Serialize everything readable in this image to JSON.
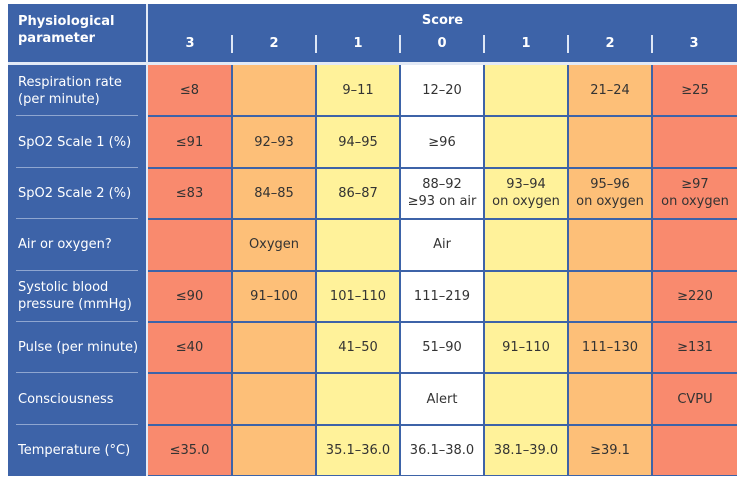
{
  "header": {
    "param_label": "Physiological parameter",
    "score_label": "Score",
    "score_columns": [
      "3",
      "2",
      "1",
      "0",
      "1",
      "2",
      "3"
    ]
  },
  "colors": {
    "header": "#3d63a8",
    "score3": "#f98a6e",
    "score2": "#fdbf78",
    "score1": "#fff29a",
    "score0": "#ffffff"
  },
  "rows": [
    {
      "label": "Respiration rate (per minute)",
      "cells": [
        "≤8",
        "",
        "9–11",
        "12–20",
        "",
        "21–24",
        "≥25"
      ]
    },
    {
      "label": "SpO2 Scale 1 (%)",
      "cells": [
        "≤91",
        "92–93",
        "94–95",
        "≥96",
        "",
        "",
        ""
      ]
    },
    {
      "label": "SpO2 Scale 2 (%)",
      "cells": [
        "≤83",
        "84–85",
        "86–87",
        "88–92 ≥93 on air",
        "93–94 on oxygen",
        "95–96 on oxygen",
        "≥97 on oxygen"
      ]
    },
    {
      "label": "Air or oxygen?",
      "cells": [
        "",
        "Oxygen",
        "",
        "Air",
        "",
        "",
        ""
      ]
    },
    {
      "label": "Systolic blood pressure (mmHg)",
      "cells": [
        "≤90",
        "91–100",
        "101–110",
        "111–219",
        "",
        "",
        "≥220"
      ]
    },
    {
      "label": "Pulse (per minute)",
      "cells": [
        "≤40",
        "",
        "41–50",
        "51–90",
        "91–110",
        "111–130",
        "≥131"
      ]
    },
    {
      "label": "Consciousness",
      "cells": [
        "",
        "",
        "",
        "Alert",
        "",
        "",
        "CVPU"
      ]
    },
    {
      "label": "Temperature (°C)",
      "cells": [
        "≤35.0",
        "",
        "35.1–36.0",
        "36.1–38.0",
        "38.1–39.0",
        "≥39.1",
        ""
      ]
    }
  ]
}
